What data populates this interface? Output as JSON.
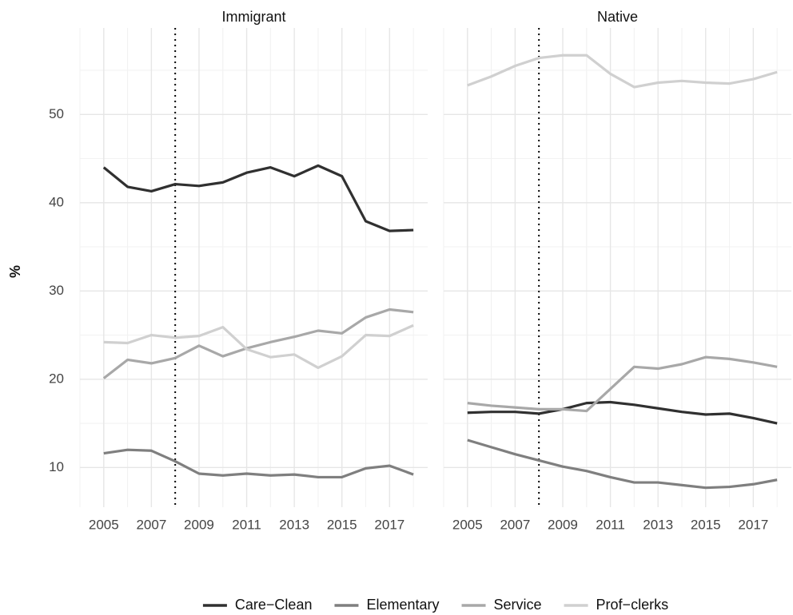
{
  "chart_data": {
    "type": "line",
    "facets": [
      "Immigrant",
      "Native"
    ],
    "ylabel": "%",
    "x": [
      2005,
      2006,
      2007,
      2008,
      2009,
      2010,
      2011,
      2012,
      2013,
      2014,
      2015,
      2016,
      2017,
      2018
    ],
    "xlim": [
      2004,
      2018.6
    ],
    "xticks": [
      2005,
      2007,
      2009,
      2011,
      2013,
      2015,
      2017
    ],
    "ylim": [
      5.5,
      59.8
    ],
    "yticks": [
      10,
      20,
      30,
      40,
      50
    ],
    "vline": 2008,
    "grid": true,
    "legend": "bottom",
    "series": [
      {
        "name": "Care−Clean",
        "color": "#303030",
        "values": [
          [
            44.0,
            41.8,
            41.3,
            42.1,
            41.9,
            42.3,
            43.4,
            44.0,
            43.0,
            44.2,
            43.0,
            37.9,
            36.8,
            36.9
          ],
          [
            16.2,
            16.3,
            16.3,
            16.1,
            16.6,
            17.3,
            17.4,
            17.1,
            16.7,
            16.3,
            16.0,
            16.1,
            15.6,
            15.0
          ]
        ]
      },
      {
        "name": "Elementary",
        "color": "#7f7f7f",
        "values": [
          [
            11.6,
            12.0,
            11.9,
            10.7,
            9.3,
            9.1,
            9.3,
            9.1,
            9.2,
            8.9,
            8.9,
            9.9,
            10.2,
            9.2
          ],
          [
            13.1,
            12.3,
            11.5,
            10.8,
            10.1,
            9.6,
            8.9,
            8.3,
            8.3,
            8.0,
            7.7,
            7.8,
            8.1,
            8.6
          ]
        ]
      },
      {
        "name": "Service",
        "color": "#a8a8a8",
        "values": [
          [
            20.1,
            22.2,
            21.8,
            22.4,
            23.8,
            22.6,
            23.5,
            24.2,
            24.8,
            25.5,
            25.2,
            27.0,
            27.9,
            27.6
          ],
          [
            17.3,
            17.0,
            16.8,
            16.6,
            16.6,
            16.4,
            18.9,
            21.4,
            21.2,
            21.7,
            22.5,
            22.3,
            21.9,
            21.4
          ]
        ]
      },
      {
        "name": "Prof−clerks",
        "color": "#d0d0d0",
        "values": [
          [
            24.2,
            24.1,
            25.0,
            24.7,
            24.9,
            25.9,
            23.4,
            22.5,
            22.8,
            21.3,
            22.6,
            25.0,
            24.9,
            26.1
          ],
          [
            53.3,
            54.3,
            55.5,
            56.4,
            56.7,
            56.7,
            54.6,
            53.1,
            53.6,
            53.8,
            53.6,
            53.5,
            54.0,
            54.8
          ]
        ]
      }
    ]
  }
}
